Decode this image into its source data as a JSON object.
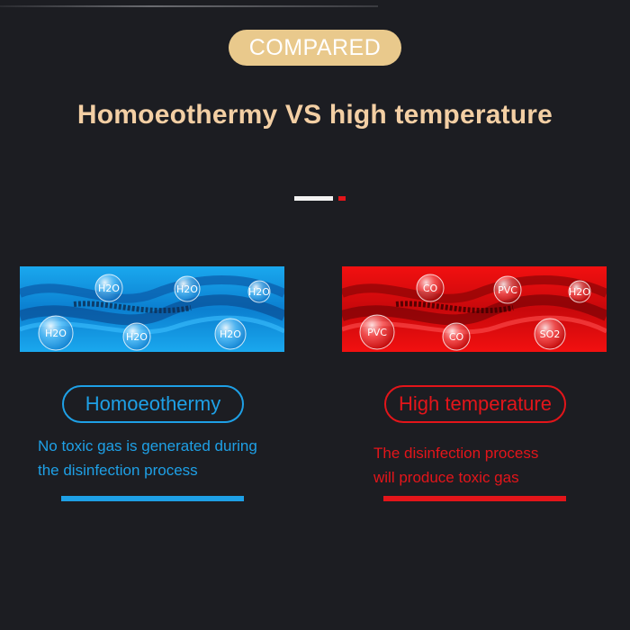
{
  "header": {
    "badge": "COMPARED",
    "title": "Homoeothermy VS high temperature"
  },
  "colors": {
    "background": "#1c1d22",
    "badge_bg": "#e9c98c",
    "title": "#f3cfa4",
    "blue": "#1ea0e6",
    "red": "#e3151a"
  },
  "left_panel": {
    "molecules": [
      "H2O",
      "H2O",
      "H2O",
      "H2O",
      "H2O",
      "H2O"
    ],
    "label": "Homoeothermy",
    "description_lines": [
      "No toxic gas is generated during",
      "the disinfection process"
    ]
  },
  "right_panel": {
    "molecules": [
      "CO",
      "PVC",
      "H2O",
      "PVC",
      "CO",
      "SO2"
    ],
    "label": "High temperature",
    "description_lines": [
      "The disinfection process",
      "will produce toxic gas"
    ]
  }
}
